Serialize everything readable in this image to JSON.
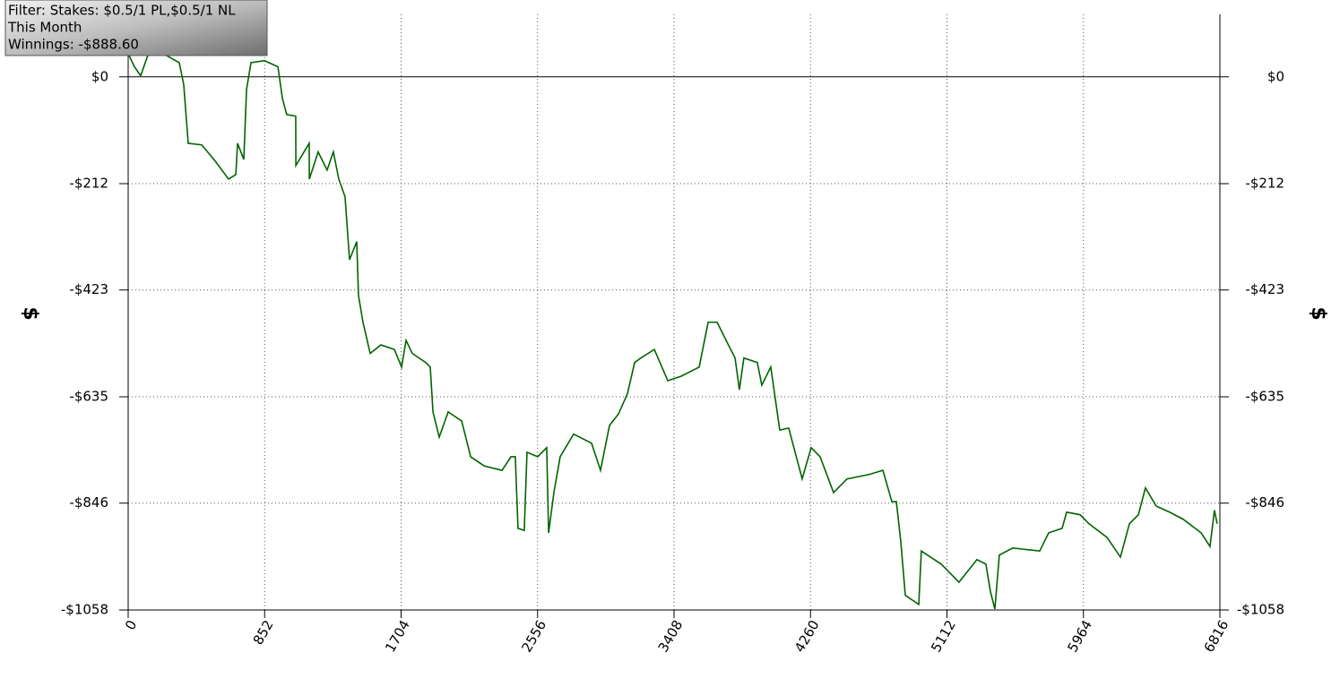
{
  "chart_data": {
    "type": "line",
    "annotations": [
      "Filter: Stakes: $0.5/1 PL,$0.5/1 NL",
      "This Month",
      "Winnings: -$888.60"
    ],
    "ylabel": "$",
    "xlim": [
      0,
      6816
    ],
    "xticks": [
      0,
      852,
      1704,
      2556,
      3408,
      4260,
      5112,
      5964,
      6816
    ],
    "ylim": [
      -1058,
      124
    ],
    "yticks": [
      {
        "value": 0,
        "label": "$0"
      },
      {
        "value": -212,
        "label": "-$212"
      },
      {
        "value": -423,
        "label": "-$423"
      },
      {
        "value": -635,
        "label": "-$635"
      },
      {
        "value": -846,
        "label": "-$846"
      },
      {
        "value": -1058,
        "label": "-$1058"
      }
    ],
    "grid": true,
    "series": [
      {
        "color": "#006400",
        "x": [
          0,
          39,
          78,
          123,
          235,
          319,
          347,
          375,
          459,
          543,
          627,
          672,
          683,
          722,
          739,
          767,
          851,
          935,
          963,
          990,
          1046,
          1047,
          1130,
          1131,
          1186,
          1242,
          1281,
          1315,
          1354,
          1382,
          1427,
          1438,
          1466,
          1511,
          1578,
          1662,
          1707,
          1735,
          1774,
          1858,
          1886,
          1903,
          1942,
          1998,
          2082,
          2110,
          2138,
          2222,
          2334,
          2390,
          2417,
          2434,
          2473,
          2490,
          2557,
          2613,
          2625,
          2658,
          2697,
          2781,
          2893,
          2949,
          3005,
          3061,
          3117,
          3162,
          3201,
          3285,
          3369,
          3453,
          3565,
          3621,
          3677,
          3733,
          3789,
          3816,
          3844,
          3928,
          3956,
          4012,
          4068,
          4124,
          4208,
          4264,
          4320,
          4404,
          4488,
          4628,
          4712,
          4768,
          4796,
          4824,
          4852,
          4936,
          4952,
          5076,
          5132,
          5187,
          5299,
          5355,
          5383,
          5411,
          5439,
          5523,
          5691,
          5747,
          5831,
          5859,
          5943,
          5999,
          6111,
          6195,
          6251,
          6307,
          6351,
          6419,
          6503,
          6587,
          6699,
          6754,
          6782,
          6799
        ],
        "values": [
          46,
          20,
          2,
          43,
          43,
          28,
          -16,
          -132,
          -135,
          -167,
          -203,
          -194,
          -132,
          -164,
          -25,
          28,
          32,
          20,
          -43,
          -75,
          -78,
          -176,
          -132,
          -203,
          -149,
          -185,
          -149,
          -203,
          -238,
          -363,
          -327,
          -434,
          -487,
          -549,
          -532,
          -541,
          -576,
          -523,
          -549,
          -567,
          -576,
          -665,
          -715,
          -665,
          -683,
          -718,
          -754,
          -772,
          -781,
          -754,
          -754,
          -896,
          -900,
          -745,
          -754,
          -736,
          -905,
          -825,
          -754,
          -709,
          -727,
          -781,
          -692,
          -669,
          -629,
          -567,
          -558,
          -541,
          -603,
          -594,
          -576,
          -487,
          -487,
          -523,
          -558,
          -621,
          -558,
          -567,
          -612,
          -576,
          -701,
          -697,
          -798,
          -736,
          -754,
          -825,
          -798,
          -789,
          -781,
          -843,
          -843,
          -923,
          -1029,
          -1047,
          -941,
          -967,
          -985,
          -1003,
          -958,
          -967,
          -1021,
          -1056,
          -949,
          -935,
          -941,
          -905,
          -896,
          -864,
          -869,
          -887,
          -914,
          -953,
          -887,
          -869,
          -816,
          -852,
          -864,
          -878,
          -905,
          -932,
          -860,
          -887
        ]
      }
    ]
  }
}
